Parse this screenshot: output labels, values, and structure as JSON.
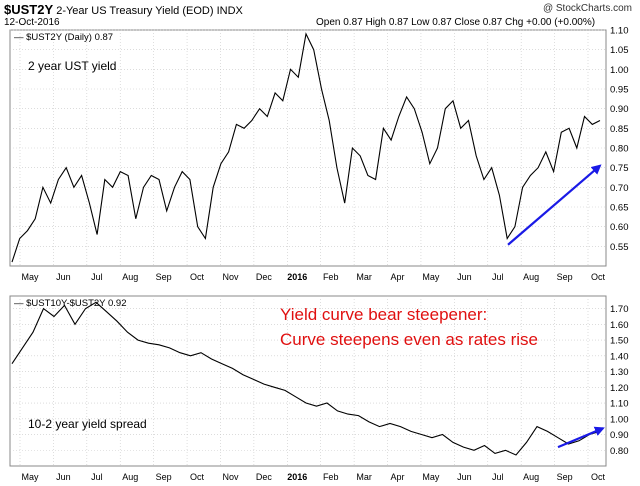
{
  "header": {
    "symbol": "$UST2Y",
    "name": "2-Year US Treasury Yield (EOD)",
    "exchange": "INDX",
    "date": "12-Oct-2016",
    "stats": "Open 0.87  High 0.87  Low 0.87  Close 0.87  Chg +0.00 (+0.00%)",
    "brand": "@ StockCharts.com"
  },
  "chart_data": [
    {
      "type": "line",
      "legend": "$UST2Y (Daily) 0.87",
      "annotation": "2 year UST yield",
      "ylim": [
        0.5,
        1.1
      ],
      "yticks": [
        "0.55",
        "0.60",
        "0.65",
        "0.70",
        "0.75",
        "0.80",
        "0.85",
        "0.90",
        "0.95",
        "1.00",
        "1.05",
        "1.10"
      ],
      "x_labels": [
        "May",
        "Jun",
        "Jul",
        "Aug",
        "Sep",
        "Oct",
        "Nov",
        "Dec",
        "2016",
        "Feb",
        "Mar",
        "Apr",
        "May",
        "Jun",
        "Jul",
        "Aug",
        "Sep",
        "Oct"
      ],
      "series": [
        {
          "values": [
            0.51,
            0.57,
            0.59,
            0.62,
            0.7,
            0.66,
            0.72,
            0.75,
            0.7,
            0.73,
            0.66,
            0.58,
            0.72,
            0.7,
            0.74,
            0.73,
            0.62,
            0.7,
            0.73,
            0.72,
            0.64,
            0.7,
            0.74,
            0.72,
            0.6,
            0.57,
            0.7,
            0.76,
            0.79,
            0.86,
            0.85,
            0.87,
            0.9,
            0.88,
            0.94,
            0.92,
            1.0,
            0.98,
            1.09,
            1.05,
            0.95,
            0.87,
            0.75,
            0.66,
            0.8,
            0.78,
            0.73,
            0.72,
            0.85,
            0.82,
            0.88,
            0.93,
            0.9,
            0.84,
            0.76,
            0.8,
            0.9,
            0.92,
            0.85,
            0.87,
            0.78,
            0.72,
            0.75,
            0.68,
            0.57,
            0.6,
            0.7,
            0.73,
            0.75,
            0.79,
            0.74,
            0.84,
            0.85,
            0.8,
            0.88,
            0.86,
            0.87
          ]
        }
      ],
      "arrow": {
        "from": [
          0.3265,
          0.554
        ],
        "to": [
          0.3588,
          0.755
        ]
      }
    },
    {
      "type": "line",
      "legend": "$UST10Y-$UST2Y 0.92",
      "annotation": "10-2 year yield spread",
      "title": "Yield curve bear steepener:",
      "subtitle": "Curve steepens even as rates rise",
      "ylim": [
        0.7,
        1.78
      ],
      "yticks": [
        "0.80",
        "0.90",
        "1.00",
        "1.10",
        "1.20",
        "1.30",
        "1.40",
        "1.50",
        "1.60",
        "1.70"
      ],
      "x_labels": [
        "May",
        "Jun",
        "Jul",
        "Aug",
        "Sep",
        "Oct",
        "Nov",
        "Dec",
        "2016",
        "Feb",
        "Mar",
        "Apr",
        "May",
        "Jun",
        "Jul",
        "Aug",
        "Sep",
        "Oct"
      ],
      "series": [
        {
          "values": [
            1.35,
            1.45,
            1.55,
            1.7,
            1.65,
            1.72,
            1.6,
            1.7,
            1.74,
            1.68,
            1.62,
            1.55,
            1.5,
            1.48,
            1.47,
            1.45,
            1.42,
            1.4,
            1.42,
            1.38,
            1.35,
            1.32,
            1.28,
            1.25,
            1.22,
            1.2,
            1.18,
            1.14,
            1.1,
            1.08,
            1.1,
            1.05,
            1.03,
            1.02,
            0.98,
            0.95,
            0.97,
            0.95,
            0.92,
            0.9,
            0.88,
            0.9,
            0.85,
            0.82,
            0.8,
            0.83,
            0.78,
            0.8,
            0.77,
            0.85,
            0.95,
            0.92,
            0.88,
            0.84,
            0.86,
            0.9,
            0.92
          ]
        }
      ],
      "arrow": {
        "from": [
          0.3265,
          0.82
        ],
        "to": [
          0.3588,
          0.94
        ]
      }
    }
  ],
  "styles": {
    "line": "#000000",
    "grid": "#c8c8c8",
    "arrow": "#1a1ae6",
    "title": "#e01010"
  }
}
